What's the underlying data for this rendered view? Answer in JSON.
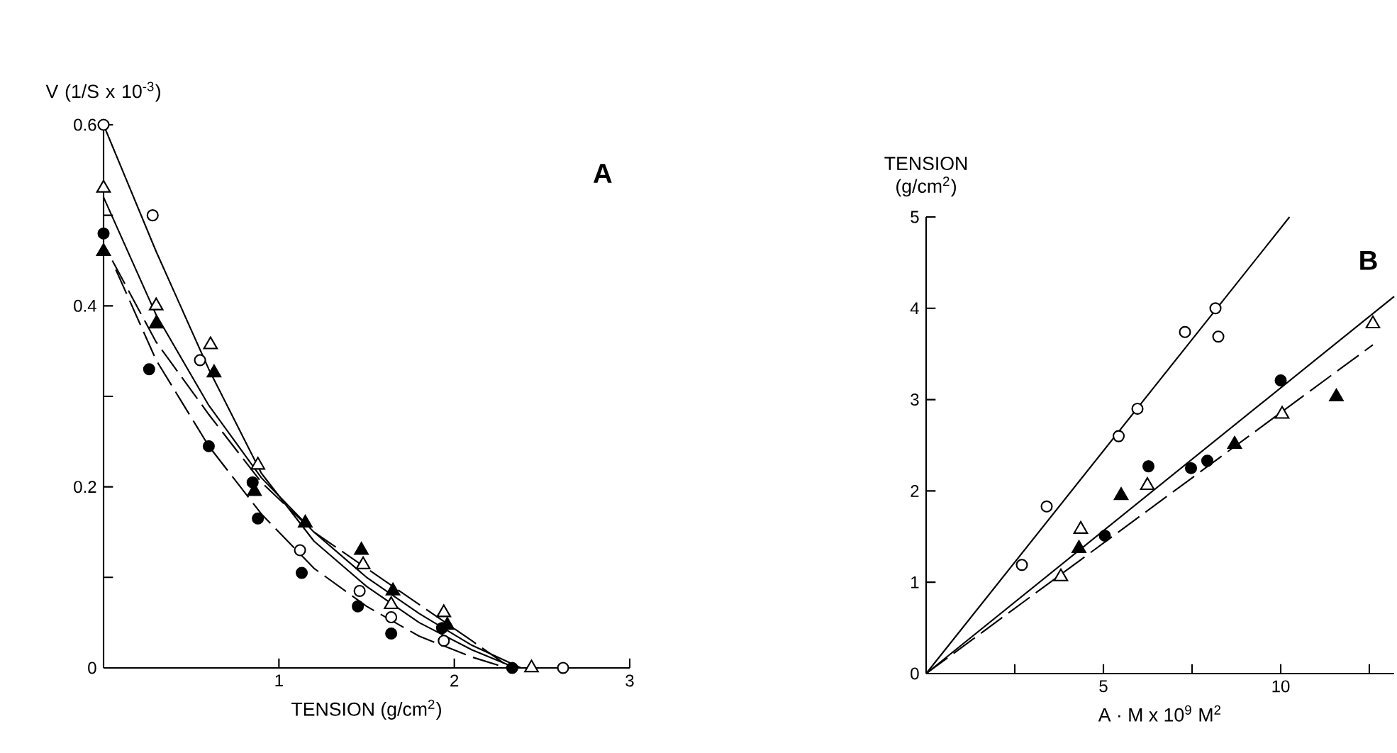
{
  "chart_data": [
    {
      "type": "scatter",
      "title": "A",
      "xlabel": "TENSION (g/cm$^{2}$)",
      "ylabel": "V (1/S x 10$^{-3}$)",
      "xlim": [
        0,
        3
      ],
      "ylim": [
        0,
        0.6
      ],
      "xticks": [
        1,
        2,
        3
      ],
      "yticks": [
        0,
        {
          "value": 0.1,
          "label": null
        },
        0.2,
        {
          "value": 0.3,
          "label": null
        },
        0.4,
        {
          "value": 0.5,
          "label": null
        },
        0.6
      ],
      "series": [
        {
          "color": "#ffffff",
          "marker": "circle",
          "x": [
            0,
            0.28,
            0.55,
            1.12,
            1.46,
            1.64,
            1.94,
            2.62
          ],
          "values": [
            0.6,
            0.5,
            0.34,
            0.13,
            0.085,
            0.056,
            0.03,
            0
          ]
        },
        {
          "color": "#ffffff",
          "marker": "triangle",
          "x": [
            0,
            0.3,
            0.61,
            0.88,
            1.48,
            1.64,
            1.94,
            2.44
          ],
          "values": [
            0.53,
            0.4,
            0.357,
            0.224,
            0.114,
            0.07,
            0.061,
            0
          ]
        },
        {
          "color": "#000000",
          "marker": "circle",
          "x": [
            0,
            0.26,
            0.6,
            0.85,
            0.88,
            1.13,
            1.45,
            1.64,
            1.93,
            2.33
          ],
          "values": [
            0.48,
            0.33,
            0.245,
            0.205,
            0.165,
            0.105,
            0.068,
            0.038,
            0.044,
            0
          ]
        },
        {
          "color": "#000000",
          "marker": "triangle",
          "x": [
            0,
            0.3,
            0.63,
            0.86,
            1.15,
            1.47,
            1.65,
            1.96
          ],
          "values": [
            0.46,
            0.38,
            0.326,
            0.195,
            0.16,
            0.13,
            0.085,
            0.047
          ]
        },
        {
          "type": "line",
          "color": "#000000",
          "line_style": "solid",
          "x": [
            0,
            0.3,
            0.6,
            0.9,
            1.2,
            1.5,
            1.8,
            2.1,
            2.35
          ],
          "values": [
            0.6,
            0.46,
            0.33,
            0.215,
            0.14,
            0.09,
            0.05,
            0.02,
            0
          ]
        },
        {
          "type": "line",
          "color": "#000000",
          "line_style": "solid",
          "x": [
            0,
            0.3,
            0.6,
            0.9,
            1.2,
            1.5,
            1.8,
            2.1,
            2.38
          ],
          "values": [
            0.52,
            0.39,
            0.29,
            0.21,
            0.15,
            0.1,
            0.06,
            0.025,
            0
          ]
        },
        {
          "type": "line",
          "color": "#000000",
          "line_style": "dashed",
          "x": [
            0.05,
            0.3,
            0.6,
            0.9,
            1.2,
            1.5,
            1.8,
            2.1,
            2.32
          ],
          "values": [
            0.45,
            0.36,
            0.28,
            0.205,
            0.15,
            0.11,
            0.07,
            0.03,
            0
          ]
        },
        {
          "type": "line",
          "color": "#000000",
          "line_style": "dashed",
          "x": [
            0.07,
            0.3,
            0.6,
            0.9,
            1.2,
            1.5,
            1.8,
            2.1,
            2.3
          ],
          "values": [
            0.44,
            0.34,
            0.245,
            0.17,
            0.11,
            0.068,
            0.035,
            0.012,
            0
          ]
        }
      ]
    },
    {
      "type": "scatter",
      "title": "B",
      "xlabel": "A · M x 10$^{9}$ M$^{2}$",
      "ylabel": "TENSION (g/cm$^{2}$)",
      "xlim": [
        0,
        13.2
      ],
      "ylim": [
        0,
        5
      ],
      "xticks": [
        {
          "value": 2.5,
          "label": null
        },
        5,
        {
          "value": 7.5,
          "label": null
        },
        10,
        {
          "value": 12.5,
          "label": null
        }
      ],
      "yticks": [
        0,
        1,
        2,
        3,
        4,
        5
      ],
      "series": [
        {
          "color": "#ffffff",
          "marker": "circle",
          "x": [
            2.7,
            3.4,
            5.43,
            5.96,
            7.3,
            8.16,
            8.24
          ],
          "values": [
            1.19,
            1.83,
            2.6,
            2.9,
            3.74,
            4.0,
            3.69
          ]
        },
        {
          "color": "#000000",
          "marker": "circle",
          "x": [
            5.04,
            6.27,
            7.47,
            7.93,
            10.0
          ],
          "values": [
            1.51,
            2.27,
            2.25,
            2.33,
            3.21
          ]
        },
        {
          "color": "#ffffff",
          "marker": "triangle",
          "x": [
            3.8,
            4.36,
            6.24,
            10.04,
            12.6
          ],
          "values": [
            1.06,
            1.58,
            2.06,
            2.84,
            3.83
          ]
        },
        {
          "color": "#000000",
          "marker": "triangle",
          "x": [
            4.31,
            5.5,
            8.7,
            11.57
          ],
          "values": [
            1.37,
            1.95,
            2.51,
            3.03
          ]
        },
        {
          "type": "line",
          "color": "#000000",
          "line_style": "solid",
          "x": [
            0,
            10.25
          ],
          "values": [
            0,
            5.0
          ]
        },
        {
          "type": "line",
          "color": "#000000",
          "line_style": "solid",
          "x": [
            0,
            13.2
          ],
          "values": [
            0,
            4.13
          ]
        },
        {
          "type": "line",
          "color": "#000000",
          "line_style": "dashed",
          "x": [
            0,
            12.6
          ],
          "values": [
            0,
            3.6
          ]
        }
      ]
    }
  ]
}
